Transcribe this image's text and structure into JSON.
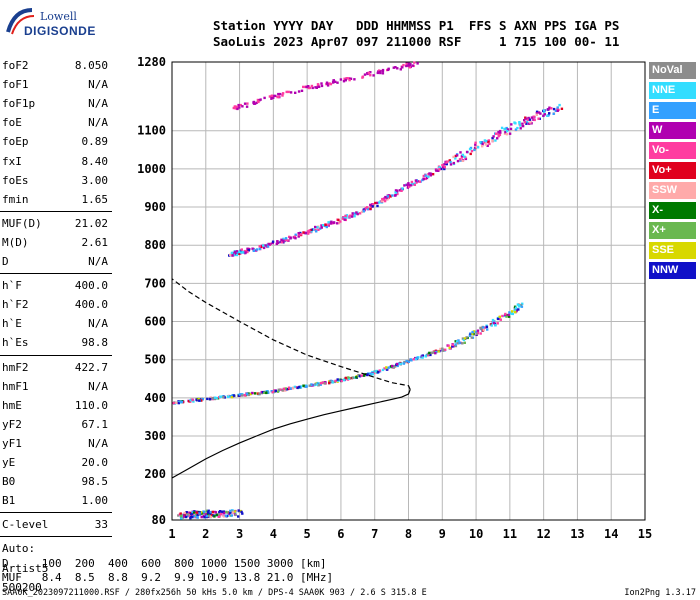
{
  "logo": {
    "line1": "Lowell",
    "line2": "DIGISONDE"
  },
  "header": {
    "line1": "Station YYYY DAY   DDD HHMMSS P1  FFS S AXN PPS IGA PS",
    "line2": "SaoLuis 2023 Apr07 097 211000 RSF     1 715 100 00- 11"
  },
  "params_group1": [
    {
      "k": "foF2",
      "v": "8.050"
    },
    {
      "k": "foF1",
      "v": "N/A"
    },
    {
      "k": "foF1p",
      "v": "N/A"
    },
    {
      "k": "foE",
      "v": "N/A"
    },
    {
      "k": "foEp",
      "v": "0.89"
    },
    {
      "k": "fxI",
      "v": "8.40"
    },
    {
      "k": "foEs",
      "v": "3.00"
    },
    {
      "k": "fmin",
      "v": "1.65"
    }
  ],
  "params_group2": [
    {
      "k": "MUF(D)",
      "v": "21.02"
    },
    {
      "k": "M(D)",
      "v": "2.61"
    },
    {
      "k": "D",
      "v": "N/A"
    }
  ],
  "params_group3": [
    {
      "k": "h`F",
      "v": "400.0"
    },
    {
      "k": "h`F2",
      "v": "400.0"
    },
    {
      "k": "h`E",
      "v": "N/A"
    },
    {
      "k": "h`Es",
      "v": "98.8"
    }
  ],
  "params_group4": [
    {
      "k": "hmF2",
      "v": "422.7"
    },
    {
      "k": "hmF1",
      "v": "N/A"
    },
    {
      "k": "hmE",
      "v": "110.0"
    },
    {
      "k": "yF2",
      "v": "67.1"
    },
    {
      "k": "yF1",
      "v": "N/A"
    },
    {
      "k": "yE",
      "v": "20.0"
    },
    {
      "k": "B0",
      "v": "98.5"
    },
    {
      "k": "B1",
      "v": "1.00"
    }
  ],
  "params_group5": [
    {
      "k": "C-level",
      "v": "33"
    }
  ],
  "params_group6": [
    {
      "k": "Auto:",
      "v": ""
    },
    {
      "k": "Artist5",
      "v": ""
    },
    {
      "k": "500200",
      "v": ""
    }
  ],
  "legend": [
    {
      "label": "NoVal",
      "color": "#8c8c8c"
    },
    {
      "label": "NNE",
      "color": "#33ddff"
    },
    {
      "label": "E",
      "color": "#33a0ff"
    },
    {
      "label": "W",
      "color": "#b000b0"
    },
    {
      "label": "Vo-",
      "color": "#ff3ca0"
    },
    {
      "label": "Vo+",
      "color": "#e0001e"
    },
    {
      "label": "SSW",
      "color": "#ffaaaa"
    },
    {
      "label": "X-",
      "color": "#007a00"
    },
    {
      "label": "X+",
      "color": "#6ab850"
    },
    {
      "label": "SSE",
      "color": "#d8d800"
    },
    {
      "label": "NNW",
      "color": "#1010c8"
    }
  ],
  "bottom": {
    "d_row": "D     100  200  400  600  800 1000 1500 3000 [km]",
    "muf_row": "MUF   8.4  8.5  8.8  9.2  9.9 10.9 13.8 21.0 [MHz]"
  },
  "footer": "SAA0K_2023097211000.RSF / 280fx256h 50 kHs 5.0 km / DPS-4 SAA0K 903 / 2.6 S 315.8 E",
  "version": "Ion2Png 1.3.17",
  "chart_data": {
    "type": "scatter",
    "xlim": [
      1,
      15
    ],
    "ylim": [
      80,
      1280
    ],
    "x_ticks": [
      1,
      2,
      3,
      4,
      5,
      6,
      7,
      8,
      9,
      10,
      11,
      12,
      13,
      14,
      15
    ],
    "y_ticks": [
      80,
      200,
      300,
      400,
      500,
      600,
      700,
      800,
      900,
      1000,
      1100,
      1280
    ],
    "y_tick_labels": [
      "80",
      "200",
      "300",
      "400",
      "500",
      "600",
      "700",
      "800",
      "900",
      "1000",
      "1100",
      "1280"
    ],
    "grid": true,
    "traces": [
      {
        "name": "F2 echo",
        "x": [
          1.0,
          1.5,
          2.0,
          2.5,
          3.0,
          3.5,
          4.0,
          4.5,
          5.0,
          5.5,
          6.0,
          6.5,
          7.0,
          7.5,
          8.0,
          8.5,
          9.0,
          9.5,
          10.0,
          10.5,
          11.0,
          11.3
        ],
        "y": [
          390,
          395,
          400,
          405,
          410,
          415,
          420,
          428,
          435,
          442,
          450,
          460,
          470,
          485,
          500,
          515,
          530,
          550,
          575,
          600,
          625,
          645
        ]
      },
      {
        "name": "2nd hop",
        "x": [
          2.7,
          3.0,
          3.5,
          4.0,
          4.5,
          5.0,
          5.5,
          6.0,
          6.5,
          7.0,
          7.5,
          8.0,
          8.5,
          9.0,
          9.5,
          10.0,
          10.5,
          11.0,
          11.5,
          12.0,
          12.5
        ],
        "y": [
          780,
          785,
          795,
          808,
          822,
          838,
          855,
          870,
          890,
          910,
          935,
          960,
          985,
          1010,
          1035,
          1060,
          1085,
          1110,
          1130,
          1150,
          1165
        ]
      },
      {
        "name": "3rd hop",
        "x": [
          2.8,
          3.5,
          4.5,
          5.5,
          6.5,
          7.5,
          8.3
        ],
        "y": [
          1160,
          1180,
          1205,
          1225,
          1245,
          1265,
          1280
        ]
      },
      {
        "name": "Es",
        "x": [
          1.2,
          1.5,
          1.8,
          2.1,
          2.5,
          3.0
        ],
        "y": [
          95,
          97,
          98,
          99,
          100,
          100
        ]
      }
    ],
    "profile": {
      "x": [
        1.0,
        1.5,
        2.0,
        2.5,
        3.0,
        3.5,
        4.0,
        4.5,
        5.0,
        5.5,
        6.0,
        6.5,
        7.0,
        7.5,
        7.8,
        8.0,
        8.05,
        8.0,
        7.5,
        7.0,
        6.5,
        6.0,
        5.0,
        4.0,
        3.0,
        2.0,
        1.5,
        1.0
      ],
      "y": [
        190,
        215,
        240,
        262,
        282,
        300,
        318,
        332,
        344,
        356,
        366,
        376,
        386,
        396,
        402,
        410,
        422,
        432,
        440,
        454,
        468,
        482,
        512,
        552,
        600,
        650,
        678,
        712
      ]
    }
  }
}
